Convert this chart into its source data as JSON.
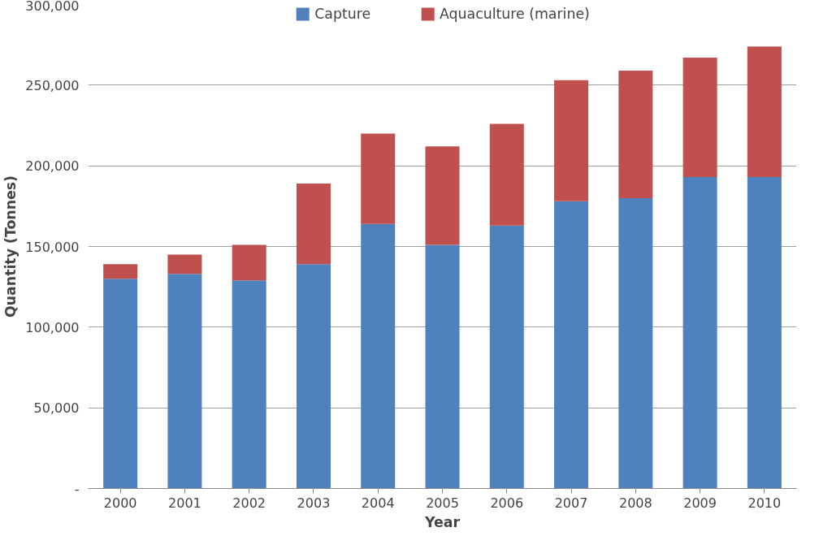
{
  "chart_data": {
    "type": "bar",
    "stacked": true,
    "xlabel": "Year",
    "ylabel": "Quantity (Tonnes)",
    "categories": [
      "2000",
      "2001",
      "2002",
      "2003",
      "2004",
      "2005",
      "2006",
      "2007",
      "2008",
      "2009",
      "2010"
    ],
    "series": [
      {
        "name": "Capture",
        "color": "#4f81bd",
        "values": [
          130000,
          133000,
          129000,
          139000,
          164000,
          151000,
          163000,
          178000,
          180000,
          193000,
          193000
        ]
      },
      {
        "name": "Aquaculture (marine)",
        "color": "#c0504d",
        "values": [
          9000,
          12000,
          22000,
          50000,
          56000,
          61000,
          63000,
          75000,
          79000,
          74000,
          81000
        ]
      }
    ],
    "ylim": [
      0,
      300000
    ],
    "yticks": [
      {
        "value": 0,
        "label": "-"
      },
      {
        "value": 50000,
        "label": "50,000"
      },
      {
        "value": 100000,
        "label": "100,000"
      },
      {
        "value": 150000,
        "label": "150,000"
      },
      {
        "value": 200000,
        "label": "200,000"
      },
      {
        "value": 250000,
        "label": "250,000"
      },
      {
        "value": 300000,
        "label": "300,000"
      }
    ],
    "grid": "y",
    "legend": "top"
  }
}
